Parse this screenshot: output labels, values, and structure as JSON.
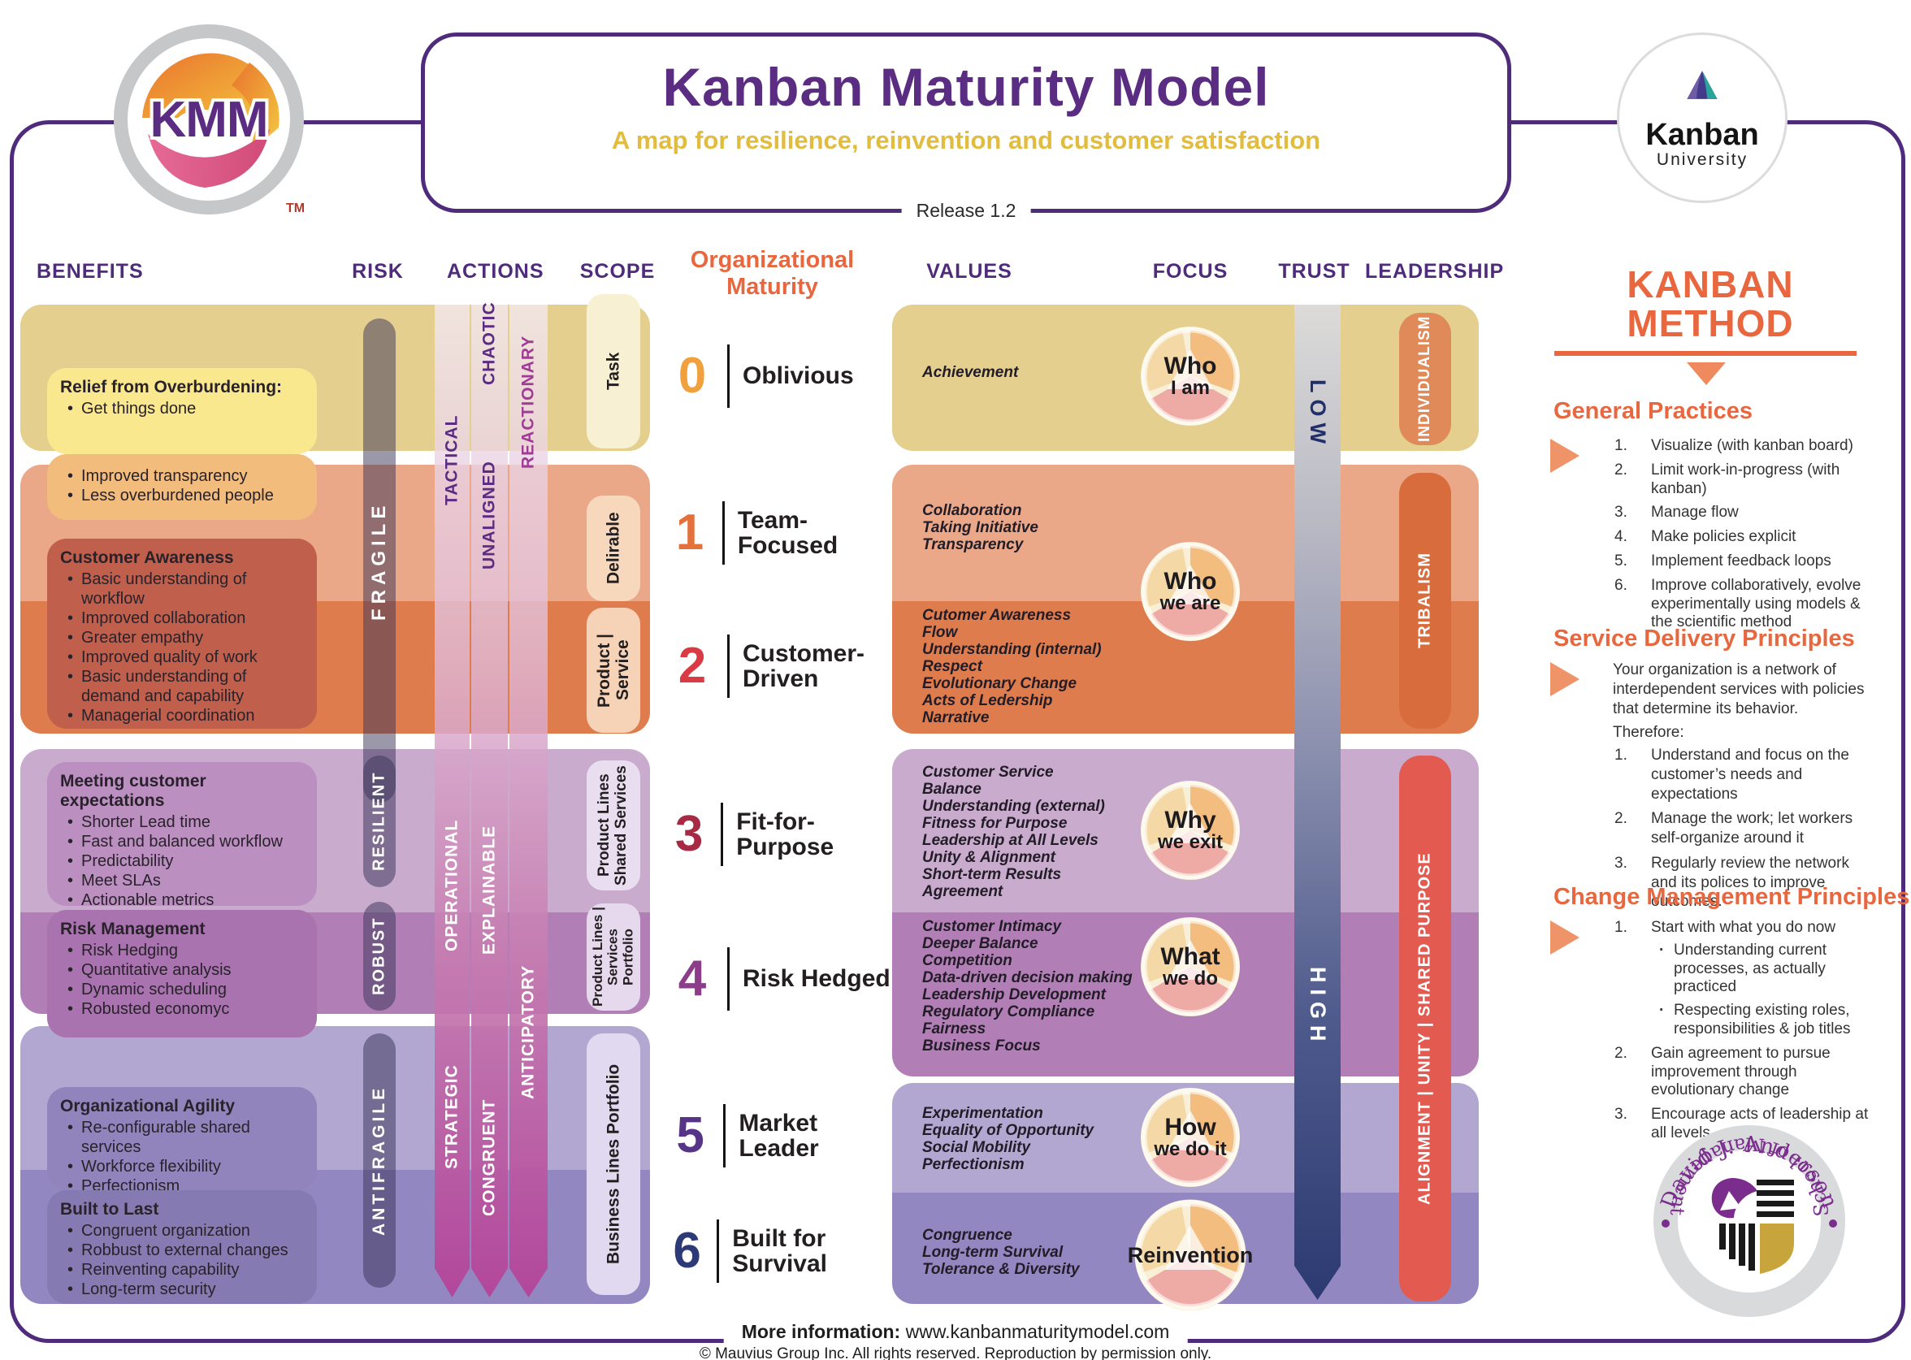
{
  "header": {
    "title": "Kanban Maturity Model",
    "subtitle": "A map for resilience, reinvention and customer satisfaction",
    "release": "Release 1.2",
    "kmm": "KMM",
    "tm": "TM",
    "ku_line1": "Kanban",
    "ku_line2": "University"
  },
  "columns": {
    "benefits": "BENEFITS",
    "risk": "RISK",
    "actions": "ACTIONS",
    "scope": "SCOPE",
    "maturity": "Organizational\nMaturity",
    "values": "VALUES",
    "focus": "FOCUS",
    "trust": "TRUST",
    "leadership": "LEADERSHIP"
  },
  "levels": [
    {
      "number": "0",
      "name": "Oblivious",
      "number_color": "#f0a13e",
      "band_color": "#e4cf8e",
      "values": [
        "Achievement"
      ]
    },
    {
      "number": "1",
      "name": "Team-Focused",
      "number_color": "#e4713b",
      "band_color": "#eba888",
      "values": [
        "Collaboration",
        "Taking Initiative",
        "Transparency"
      ]
    },
    {
      "number": "2",
      "name": "Customer-\nDriven",
      "number_color": "#da3a44",
      "band_color": "#de7c4e",
      "values": [
        "Cutomer Awareness",
        "Flow",
        "Understanding (internal)",
        "Respect",
        "Evolutionary Change",
        "Acts of Ledership",
        "Narrative"
      ]
    },
    {
      "number": "3",
      "name": "Fit-for-Purpose",
      "number_color": "#a72a44",
      "band_color": "#c9abce",
      "values": [
        "Customer Service",
        "Balance",
        "Understanding (external)",
        "Fitness for Purpose",
        "Leadership at All Levels",
        "Unity & Alignment",
        "Short-term Results",
        "Agreement"
      ]
    },
    {
      "number": "4",
      "name": "Risk Hedged",
      "number_color": "#8d3c8a",
      "band_color": "#b17fb5",
      "values": [
        "Customer Intimacy",
        "Deeper Balance",
        "Competition",
        "Data-driven decision making",
        "Leadership Development",
        "Regulatory Compliance",
        "Fairness",
        "Business Focus"
      ]
    },
    {
      "number": "5",
      "name": "Market Leader",
      "number_color": "#563487",
      "band_color": "#b2a7d1",
      "values": [
        "Experimentation",
        "Equality of Opportunity",
        "Social Mobility",
        "Perfectionism"
      ]
    },
    {
      "number": "6",
      "name": "Built for Survival",
      "number_color": "#2c3a78",
      "band_color": "#9387c2",
      "values": [
        "Congruence",
        "Long-term Survival",
        "Tolerance & Diversity"
      ]
    }
  ],
  "focus_items": [
    {
      "main": "Who",
      "sub": "I am"
    },
    {
      "main": "Who",
      "sub": "we are"
    },
    {
      "main": "Why",
      "sub": "we exit"
    },
    {
      "main": "What",
      "sub": "we do"
    },
    {
      "main": "How",
      "sub": "we do it"
    },
    {
      "main": "Reinvention",
      "sub": ""
    }
  ],
  "scopes": [
    {
      "label": "Task",
      "color": "#f8f0d2"
    },
    {
      "label": "Delirable",
      "color": "#f8d8bc"
    },
    {
      "label": "Product |\nService",
      "color": "#f6d2b6"
    },
    {
      "label": "Product Lines\nShared Services",
      "color": "#e9ddf0"
    },
    {
      "label": "Product Lines |\nServices Portfolio",
      "color": "#e6d9ee"
    },
    {
      "label": "Business Lines Portfolio",
      "color": "#e1d9f0"
    }
  ],
  "risk_labels": [
    "FRAGILE",
    "RESILIENT",
    "ROBUST",
    "ANTIFRAGILE"
  ],
  "action_labels": [
    "CHAOTIC",
    "TACTICAL",
    "REACTIONARY",
    "UNALIGNED",
    "OPERATIONAL",
    "EXPLAINABLE",
    "ANTICIPATORY",
    "STRATEGIC",
    "CONGRUENT"
  ],
  "trust": {
    "low": "LOW",
    "high": "HIGH"
  },
  "leadership_items": [
    {
      "label": "INDIVIDUALISM",
      "color": "#e18a59"
    },
    {
      "label": "TRIBALISM",
      "color": "#d96c3c"
    },
    {
      "label": "ALIGNMENT  |  UNITY  |  SHARED PURPOSE",
      "color": "#e25a50"
    }
  ],
  "benefits": [
    {
      "title": "Relief from Overburdening:",
      "color": "#f9e88d",
      "items": [
        "Get things done"
      ]
    },
    {
      "title": "",
      "color": "#f2bc7c",
      "items": [
        "Improved transparency",
        "Less overburdened people"
      ]
    },
    {
      "title": "Customer Awareness",
      "color": "#c05f4b",
      "items": [
        "Basic understanding of workflow",
        "Improved collaboration",
        "Greater empathy",
        "Improved quality of work",
        "Basic understanding of demand and capability",
        "Managerial coordination"
      ]
    },
    {
      "title": "Meeting customer expectations",
      "color": "#bb90c1",
      "items": [
        "Shorter Lead time",
        "Fast and balanced workflow",
        "Predictability",
        "Meet SLAs",
        "Actionable metrics"
      ]
    },
    {
      "title": "Risk Management",
      "color": "#a873ae",
      "items": [
        "Risk Hedging",
        "Quantitative analysis",
        "Dynamic scheduling",
        "Robusted economyc"
      ]
    },
    {
      "title": "Organizational Agility",
      "color": "#9184bd",
      "items": [
        "Re-configurable shared services",
        "Workforce flexibility",
        "Perfectionism"
      ]
    },
    {
      "title": "Built to Last",
      "color": "#867ab2",
      "items": [
        "Congruent organization",
        "Robbust to external changes",
        "Reinventing capability",
        "Long-term security"
      ]
    }
  ],
  "method": {
    "title": "KANBAN\nMETHOD",
    "gp": {
      "heading": "General Practices",
      "items": [
        "Visualize (with kanban board)",
        "Limit work-in-progress (with kanban)",
        "Manage flow",
        "Make policies explicit",
        "Implement feedback loops",
        "Improve collaboratively, evolve experimentally using models & the scientific method"
      ]
    },
    "sdp": {
      "heading": "Service Delivery Principles",
      "intro": "Your organization is a network of interdependent services with policies that determine its behavior.",
      "therefore": "Therefore:",
      "items": [
        "Understand and focus on the customer’s needs and expectations",
        "Manage the work; let workers self-organize around it",
        "Regularly review the network and its polices to improve outcomes."
      ]
    },
    "cmp": {
      "heading": "Change Management Principles",
      "items": [
        {
          "text": "Start with what you do now",
          "subs": [
            "Understanding current processes, as actually practiced",
            "Respecting existing roles, responsibilities & job titles"
          ]
        },
        {
          "text": "Gain agreement to pursue improvement through evolutionary change",
          "subs": []
        },
        {
          "text": "Encourage acts of leadership at all levels",
          "subs": []
        }
      ]
    }
  },
  "seal": {
    "top": "David J. Anderson",
    "bottom": "School of Management"
  },
  "footer": {
    "info_label": "More information:",
    "url": "www.kanbanmaturitymodel.com",
    "copyright": "© Mauvius Group Inc. All rights reserved. Reproduction by permission only."
  },
  "colors": {
    "frame_purple": "#4f2b7c",
    "heading_purple": "#5b2d82",
    "accent_orange": "#e8673f",
    "subtitle_gold": "#e2bc3e",
    "risk_pill": "rgba(55,50,85,0.5)",
    "trust_low_text": "#223069",
    "action_label_dark": "#5b2d82",
    "action_label_magenta": "#a03c96"
  }
}
